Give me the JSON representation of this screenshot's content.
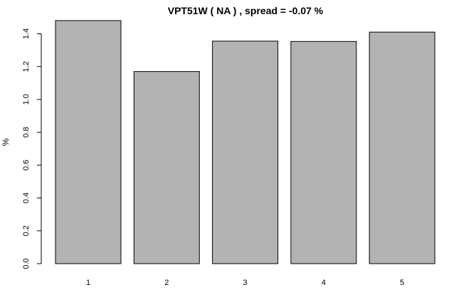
{
  "chart_data": {
    "type": "bar",
    "title": "VPT51W ( NA ) , spread = -0.07 %",
    "xlabel": "",
    "ylabel": "%",
    "categories": [
      "1",
      "2",
      "3",
      "4",
      "5"
    ],
    "values": [
      1.48,
      1.17,
      1.355,
      1.353,
      1.41
    ],
    "ylim": [
      0,
      1.48
    ],
    "yticks": [
      "0.0",
      "0.2",
      "0.4",
      "0.6",
      "0.8",
      "1.0",
      "1.2",
      "1.4"
    ],
    "bar_color": "#b3b3b3",
    "grid": false,
    "legend": "none"
  }
}
